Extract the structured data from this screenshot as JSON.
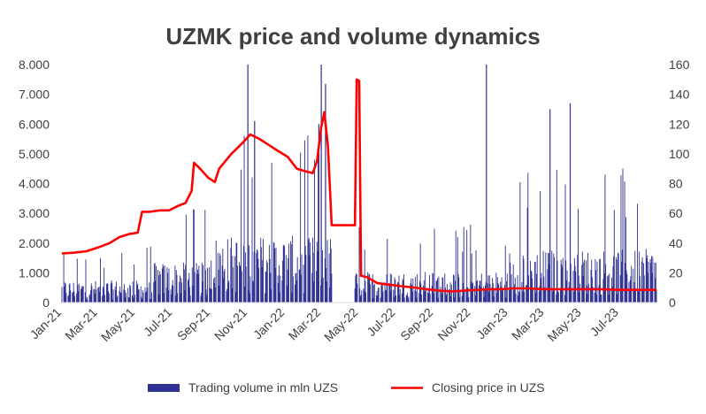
{
  "chart_data": {
    "type": "bar+line",
    "title": "UZMK price and volume dynamics",
    "xlabel": "",
    "ylabel_left": "",
    "ylabel_right": "",
    "x_range": [
      "2021-01-01",
      "2023-08-31"
    ],
    "x_tick_labels": [
      "Jan-21",
      "Mar-21",
      "May-21",
      "Jul-21",
      "Sep-21",
      "Nov-21",
      "Jan-22",
      "Mar-22",
      "May-22",
      "Jul-22",
      "Sep-22",
      "Nov-22",
      "Jan-23",
      "Mar-23",
      "May-23",
      "Jul-23"
    ],
    "y_left": {
      "min": 0,
      "max": 8000,
      "ticks": [
        "0",
        "1.000",
        "2.000",
        "3.000",
        "4.000",
        "5.000",
        "6.000",
        "7.000",
        "8.000"
      ]
    },
    "y_right": {
      "min": 0,
      "max": 160,
      "ticks": [
        "0",
        "20",
        "40",
        "60",
        "80",
        "100",
        "120",
        "140",
        "160"
      ]
    },
    "grid": false,
    "legend_position": "bottom",
    "series": [
      {
        "name": "Trading volume in mln UZS",
        "type": "bar",
        "axis": "left",
        "color": "#2e3192",
        "note_spikes": [
          {
            "date": "2021-11-01",
            "value": 8000
          },
          {
            "date": "2022-03-01",
            "value": 8000
          },
          {
            "date": "2022-03-08",
            "value": 7350
          },
          {
            "date": "2022-11-26",
            "value": 8000
          },
          {
            "date": "2023-03-10",
            "value": 6500
          },
          {
            "date": "2023-04-12",
            "value": 6700
          },
          {
            "date": "2021-11-12",
            "value": 6100
          },
          {
            "date": "2022-02-25",
            "value": 6000
          }
        ]
      },
      {
        "name": "Closing price in UZS",
        "type": "line",
        "axis": "right",
        "color": "#ff0000",
        "points": [
          [
            "2021-01-01",
            33
          ],
          [
            "2021-01-20",
            33.5
          ],
          [
            "2021-02-10",
            34.5
          ],
          [
            "2021-03-01",
            37
          ],
          [
            "2021-03-20",
            40
          ],
          [
            "2021-04-05",
            44
          ],
          [
            "2021-04-20",
            46
          ],
          [
            "2021-05-05",
            47
          ],
          [
            "2021-05-12",
            61
          ],
          [
            "2021-05-25",
            61
          ],
          [
            "2021-06-10",
            62
          ],
          [
            "2021-06-25",
            62
          ],
          [
            "2021-07-10",
            65
          ],
          [
            "2021-07-22",
            67
          ],
          [
            "2021-08-01",
            75
          ],
          [
            "2021-08-05",
            94
          ],
          [
            "2021-08-15",
            90
          ],
          [
            "2021-08-28",
            84
          ],
          [
            "2021-09-08",
            81
          ],
          [
            "2021-09-15",
            90
          ],
          [
            "2021-09-25",
            95
          ],
          [
            "2021-10-05",
            100
          ],
          [
            "2021-10-15",
            104
          ],
          [
            "2021-10-25",
            108
          ],
          [
            "2021-11-05",
            113
          ],
          [
            "2021-11-20",
            110
          ],
          [
            "2021-12-05",
            106
          ],
          [
            "2021-12-20",
            102
          ],
          [
            "2022-01-05",
            98
          ],
          [
            "2022-01-20",
            90
          ],
          [
            "2022-02-05",
            88
          ],
          [
            "2022-02-15",
            87
          ],
          [
            "2022-02-22",
            95
          ],
          [
            "2022-03-01",
            118
          ],
          [
            "2022-03-06",
            128
          ],
          [
            "2022-03-12",
            105
          ],
          [
            "2022-03-18",
            52
          ],
          [
            "2022-04-25",
            52
          ],
          [
            "2022-04-28",
            150
          ],
          [
            "2022-05-02",
            149
          ],
          [
            "2022-05-05",
            18
          ],
          [
            "2022-05-15",
            17
          ],
          [
            "2022-06-01",
            13
          ],
          [
            "2022-06-20",
            12
          ],
          [
            "2022-07-10",
            11
          ],
          [
            "2022-08-01",
            10
          ],
          [
            "2022-08-20",
            9
          ],
          [
            "2022-09-10",
            8
          ],
          [
            "2022-10-01",
            7.5
          ],
          [
            "2022-10-20",
            8
          ],
          [
            "2022-11-10",
            8.5
          ],
          [
            "2022-12-01",
            9
          ],
          [
            "2022-12-20",
            9
          ],
          [
            "2023-01-10",
            9.5
          ],
          [
            "2023-02-01",
            9.5
          ],
          [
            "2023-03-01",
            9
          ],
          [
            "2023-04-01",
            9
          ],
          [
            "2023-05-01",
            9
          ],
          [
            "2023-06-01",
            9
          ],
          [
            "2023-07-01",
            8.5
          ],
          [
            "2023-08-01",
            8.5
          ],
          [
            "2023-08-31",
            8.5
          ]
        ]
      }
    ]
  }
}
